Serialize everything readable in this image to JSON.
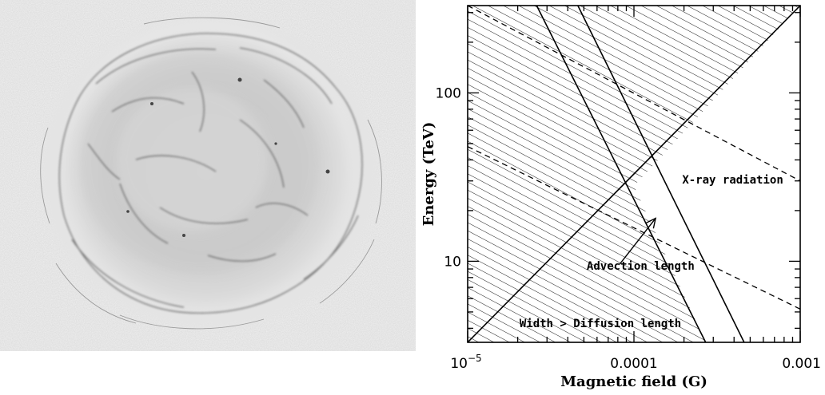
{
  "image_panel": {
    "icon": "supernova-remnant-image"
  },
  "chart_data": {
    "type": "line",
    "xscale": "log",
    "yscale": "log",
    "xlabel": "Magnetic field (G)",
    "ylabel": "Energy (TeV)",
    "xlim": [
      1e-05,
      0.001
    ],
    "ylim": [
      3.3,
      330
    ],
    "x_tick_labels": [
      {
        "value": 1e-05,
        "base": "10",
        "exp": "−5"
      },
      {
        "value": 0.0001,
        "label": "0.0001"
      },
      {
        "value": 0.001,
        "label": "0.001"
      }
    ],
    "y_tick_labels": [
      {
        "value": 10,
        "label": "10"
      },
      {
        "value": 100,
        "label": "100"
      }
    ],
    "grid": false,
    "legend": "none",
    "series": [
      {
        "style": "solid",
        "points": [
          [
            1e-05,
            3.3
          ],
          [
            0.001,
            330
          ]
        ]
      },
      {
        "style": "solid",
        "points": [
          [
            2.6e-05,
            330
          ],
          [
            0.00027,
            3.3
          ]
        ]
      },
      {
        "style": "solid",
        "points": [
          [
            4.6e-05,
            330
          ],
          [
            0.00046,
            3.3
          ]
        ]
      },
      {
        "style": "dashed",
        "points": [
          [
            1e-05,
            330
          ],
          [
            0.001,
            30
          ]
        ]
      },
      {
        "style": "dashed",
        "points": [
          [
            1e-05,
            48
          ],
          [
            0.001,
            5.2
          ]
        ]
      }
    ],
    "hatched_region": {
      "polygon": [
        [
          1e-05,
          330
        ],
        [
          0.001,
          330
        ],
        [
          0.00014,
          40
        ],
        [
          0.0001,
          28
        ],
        [
          0.00027,
          3.3
        ],
        [
          1e-05,
          3.3
        ]
      ],
      "pattern": "diagonal lines"
    },
    "annotations": [
      {
        "text": "X-ray radiation",
        "x": 0.000195,
        "y": 29
      },
      {
        "text": "Advection length",
        "x": 5.2e-05,
        "y": 8.9
      },
      {
        "text": "Width > Diffusion length",
        "x": 2.05e-05,
        "y": 4.05
      }
    ],
    "arrow": {
      "from": [
        8.2e-05,
        9.6
      ],
      "to": [
        0.000135,
        18
      ]
    }
  }
}
